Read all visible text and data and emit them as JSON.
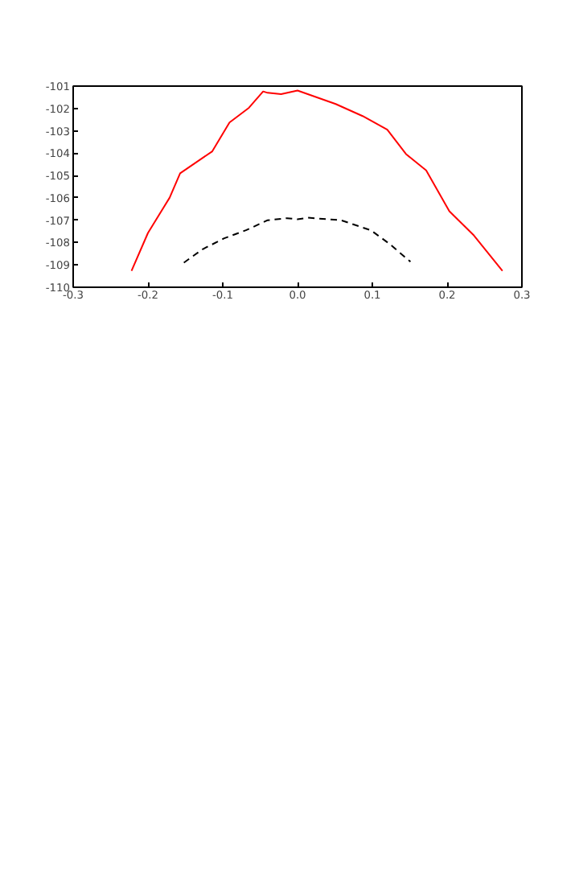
{
  "chart_data": {
    "type": "line",
    "xlim": [
      -0.3,
      0.3
    ],
    "ylim": [
      -110,
      -101
    ],
    "xticks": [
      -0.3,
      -0.2,
      -0.1,
      {
        "value": 0,
        "label": "0.0"
      },
      0.1,
      0.2,
      0.3
    ],
    "yticks": [
      -110,
      -109,
      -108,
      -107,
      -106,
      -105,
      -104,
      -103,
      -102,
      -101
    ],
    "grid": false,
    "series": [
      {
        "color": "#ff0000",
        "line_style": "solid",
        "x": [
          -0.222,
          -0.2,
          -0.171,
          -0.157,
          -0.114,
          -0.091,
          -0.065,
          -0.046,
          -0.04,
          -0.022,
          0.0,
          0.051,
          0.087,
          0.12,
          0.145,
          0.172,
          0.203,
          0.236,
          0.274
        ],
        "values": [
          -109.27,
          -107.57,
          -105.99,
          -104.9,
          -103.92,
          -102.63,
          -101.97,
          -101.24,
          -101.3,
          -101.36,
          -101.2,
          -101.8,
          -102.34,
          -102.95,
          -104.04,
          -104.77,
          -106.6,
          -107.69,
          -109.27
        ]
      },
      {
        "color": "#000000",
        "line_style": "dashed",
        "x": [
          -0.152,
          -0.127,
          -0.098,
          -0.069,
          -0.04,
          -0.014,
          0.0,
          0.014,
          0.058,
          0.098,
          0.123,
          0.151
        ],
        "values": [
          -108.9,
          -108.3,
          -107.81,
          -107.45,
          -107.0,
          -106.91,
          -106.96,
          -106.89,
          -107.0,
          -107.45,
          -108.06,
          -108.86
        ]
      }
    ]
  }
}
